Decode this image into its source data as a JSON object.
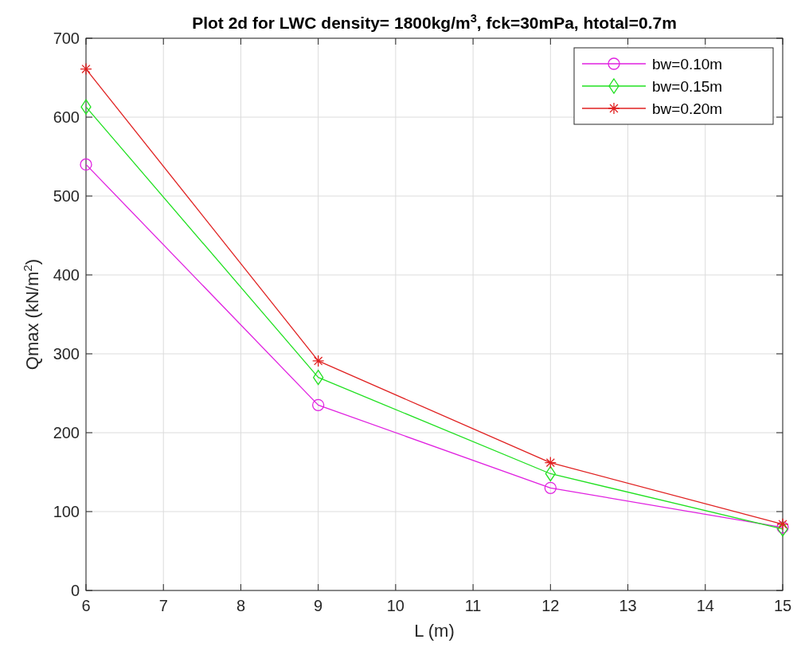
{
  "chart_data": {
    "type": "line",
    "title": "Plot 2d for LWC density= 1800kg/m$^{3}$, fck=30mPa, htotal=0.7m",
    "xlabel": "L (m)",
    "ylabel": "Qmax (kN/m$^{2}$)",
    "x": [
      6,
      9,
      12,
      15
    ],
    "series": [
      {
        "name": "bw=0.10m",
        "color": "#e020e0",
        "marker": "circle",
        "values": [
          540,
          235,
          130,
          80
        ]
      },
      {
        "name": "bw=0.15m",
        "color": "#20e020",
        "marker": "diamond",
        "values": [
          613,
          270,
          148,
          78
        ]
      },
      {
        "name": "bw=0.20m",
        "color": "#e02020",
        "marker": "cross",
        "values": [
          661,
          291,
          162,
          84
        ]
      }
    ],
    "xlim": [
      6,
      15
    ],
    "xticks": [
      6,
      7,
      8,
      9,
      10,
      11,
      12,
      13,
      14,
      15
    ],
    "ylim": [
      0,
      700
    ],
    "yticks": [
      0,
      100,
      200,
      300,
      400,
      500,
      600,
      700
    ],
    "grid": true,
    "legend": "top right",
    "line_style": "solid"
  }
}
